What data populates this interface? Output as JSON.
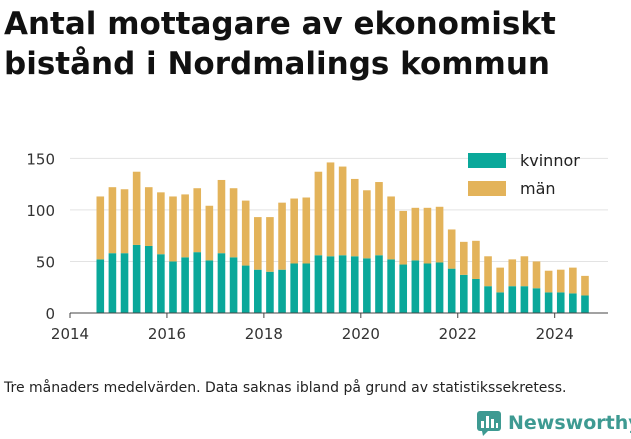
{
  "header": {
    "title_line1": "Antal mottagare av ekonomiskt",
    "title_line2": "bistånd i Nordmalings kommun"
  },
  "caption": "Tre månaders medelvärden. Data saknas ibland på grund av statistikssekretess.",
  "brand": {
    "name": "Newsworthy",
    "icon": "bar-chart-logo-icon",
    "color": "#3e9a92"
  },
  "chart_data": {
    "type": "bar",
    "stacked": true,
    "title": "Antal mottagare av ekonomiskt bistånd i Nordmalings kommun",
    "xlabel": "",
    "ylabel": "",
    "ylim": [
      0,
      160
    ],
    "yticks": [
      0,
      50,
      100,
      150
    ],
    "xticks": [
      "2014",
      "2016",
      "2018",
      "2020",
      "2022",
      "2024"
    ],
    "grid": "horizontal",
    "legend_position": "top-right",
    "x": [
      "2014-Q3",
      "2014-Q4",
      "2015-Q1",
      "2015-Q2",
      "2015-Q3",
      "2015-Q4",
      "2016-Q1",
      "2016-Q2",
      "2016-Q3",
      "2016-Q4",
      "2017-Q1",
      "2017-Q2",
      "2017-Q3",
      "2017-Q4",
      "2018-Q1",
      "2018-Q2",
      "2018-Q3",
      "2018-Q4",
      "2019-Q1",
      "2019-Q2",
      "2019-Q3",
      "2019-Q4",
      "2020-Q1",
      "2020-Q2",
      "2020-Q3",
      "2020-Q4",
      "2021-Q1",
      "2021-Q2",
      "2021-Q3",
      "2021-Q4",
      "2022-Q1",
      "2022-Q2",
      "2022-Q3",
      "2022-Q4",
      "2023-Q1",
      "2023-Q2",
      "2023-Q3",
      "2023-Q4",
      "2024-Q1",
      "2024-Q2",
      "2024-Q3"
    ],
    "series": [
      {
        "name": "kvinnor",
        "color": "#0aa89a",
        "values": [
          52,
          58,
          58,
          66,
          65,
          57,
          50,
          54,
          59,
          51,
          58,
          54,
          46,
          42,
          40,
          42,
          48,
          48,
          56,
          55,
          56,
          55,
          53,
          56,
          52,
          47,
          51,
          48,
          49,
          43,
          37,
          33,
          26,
          20,
          26,
          26,
          24,
          20,
          20,
          19,
          17
        ]
      },
      {
        "name": "män",
        "color": "#e3b35a",
        "values": [
          61,
          64,
          62,
          71,
          57,
          60,
          63,
          61,
          62,
          53,
          71,
          67,
          63,
          51,
          53,
          65,
          63,
          64,
          81,
          91,
          86,
          75,
          66,
          71,
          61,
          52,
          51,
          54,
          54,
          38,
          32,
          37,
          29,
          24,
          26,
          29,
          26,
          21,
          22,
          25,
          19
        ]
      }
    ]
  }
}
